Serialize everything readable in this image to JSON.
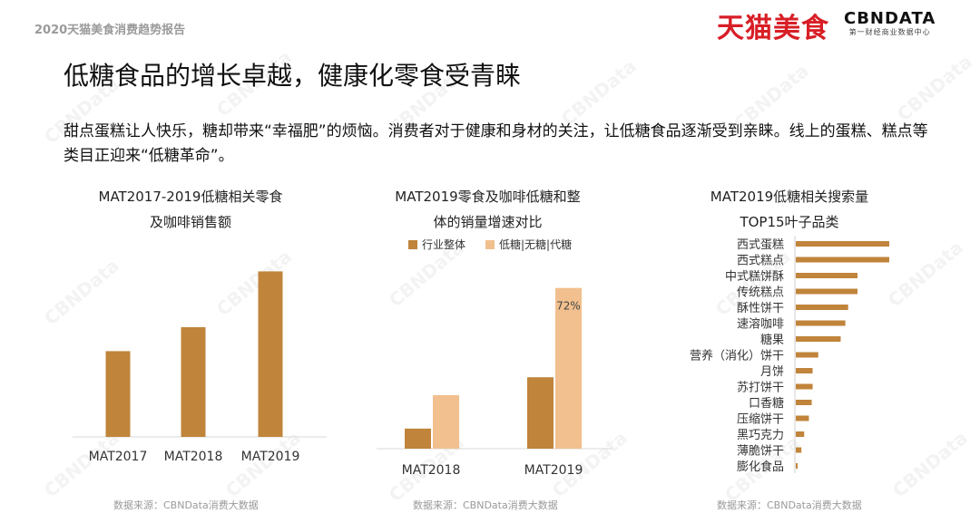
{
  "header": {
    "report_tag": "2020天猫美食消费趋势报告",
    "brand_tmall": "天猫美食",
    "brand_cbn": "CBNDATA",
    "brand_cbn_sub": "第一财经商业数据中心"
  },
  "title": "低糖食品的增长卓越，健康化零食受青睐",
  "intro": "甜点蛋糕让人快乐，糖却带来“幸福肥”的烦恼。消费者对于健康和身材的关注，让低糖食品逐渐受到亲睐。线上的蛋糕、糕点等类目正迎来“低糖革命”。",
  "colors": {
    "dark": "#c0843b",
    "light": "#f1c08e",
    "title_text": "#111111"
  },
  "watermark": "CBNData",
  "chart_data": [
    {
      "type": "bar",
      "title": "MAT2017-2019低糖相关零食\n及咖啡销售额",
      "title_lines": [
        "MAT2017-2019低糖相关零食",
        "及咖啡销售额"
      ],
      "categories": [
        "MAT2017",
        "MAT2018",
        "MAT2019"
      ],
      "values": [
        43,
        55,
        83
      ],
      "ylim": [
        0,
        100
      ],
      "source": "数据来源：CBNData消费大数据"
    },
    {
      "type": "bar",
      "title": "MAT2019零食及咖啡低糖和整\n体的销量增速对比",
      "title_lines": [
        "MAT2019零食及咖啡低糖和整",
        "体的销量增速对比"
      ],
      "categories": [
        "MAT2018",
        "MAT2019"
      ],
      "series": [
        {
          "name": "行业整体",
          "values": [
            9,
            32
          ]
        },
        {
          "name": "低糖|无糖|代糖",
          "values": [
            24,
            72
          ]
        }
      ],
      "annotations": [
        {
          "label": "72%",
          "category": "MAT2019",
          "series": "低糖|无糖|代糖"
        }
      ],
      "ylim": [
        0,
        80
      ],
      "legend": "top",
      "source": "数据来源：CBNData消费大数据"
    },
    {
      "type": "bar",
      "orientation": "horizontal",
      "title": "MAT2019低糖相关搜索量\nTOP15叶子品类",
      "title_lines": [
        "MAT2019低糖相关搜索量",
        "TOP15叶子品类"
      ],
      "categories": [
        "西式蛋糕",
        "西式糕点",
        "中式糕饼酥",
        "传统糕点",
        "酥性饼干",
        "速溶咖啡",
        "糖果",
        "营养（消化）饼干",
        "月饼",
        "苏打饼干",
        "口香糖",
        "压缩饼干",
        "黑巧克力",
        "薄脆饼干",
        "膨化食品"
      ],
      "values": [
        100,
        100,
        66,
        66,
        56,
        53,
        48,
        24,
        18,
        18,
        17,
        14,
        9,
        6,
        2
      ],
      "xlim": [
        0,
        100
      ],
      "source": "数据来源：CBNData消费大数据"
    }
  ]
}
